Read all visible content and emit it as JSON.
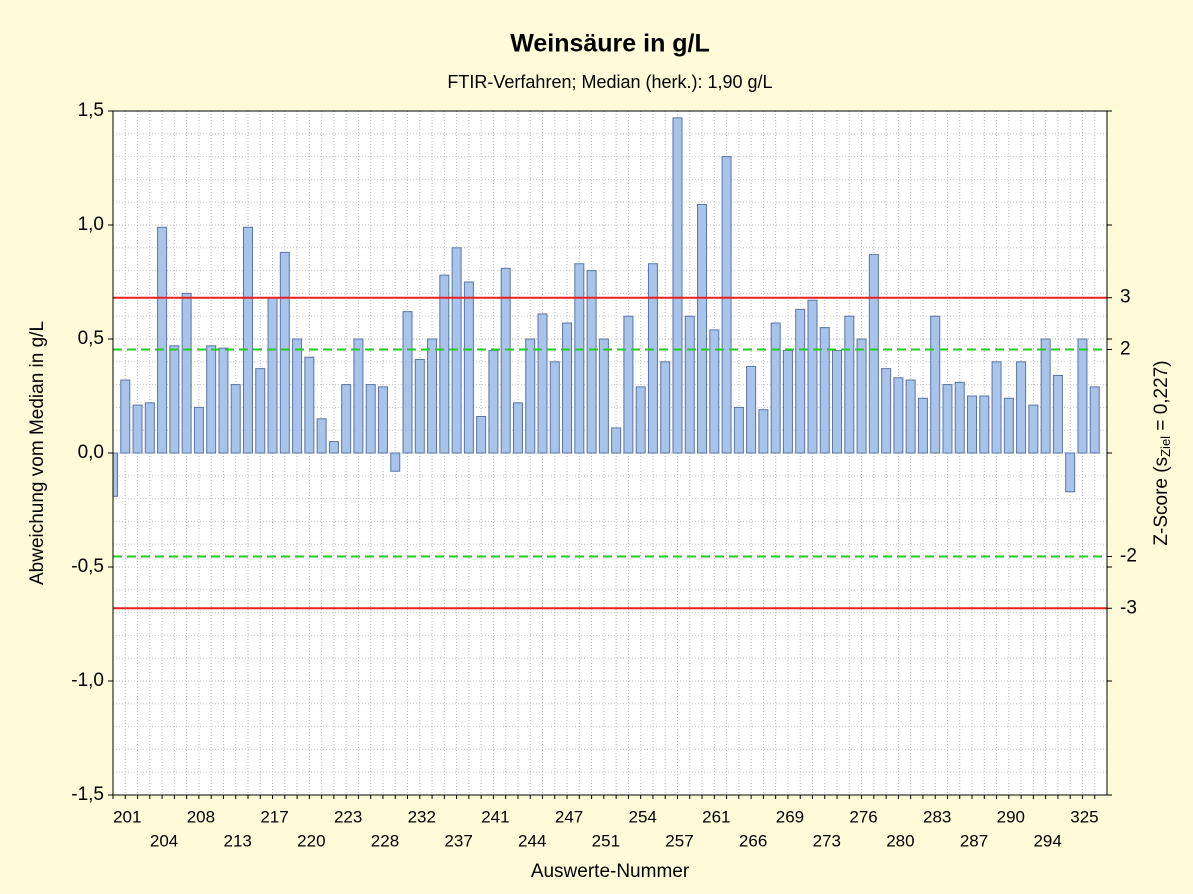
{
  "chart_data": {
    "type": "bar",
    "title": "Weinsäure in g/L",
    "subtitle": "FTIR-Verfahren; Median (herk.): 1,90 g/L",
    "ylabel": "Abweichung vom Median in g/L",
    "xlabel": "Auswerte-Nummer",
    "y2label": [
      "Z-Score (s",
      "Ziel",
      " = 0,227)"
    ],
    "categories": [
      null,
      "201",
      null,
      null,
      "204",
      null,
      null,
      "208",
      null,
      null,
      "213",
      null,
      null,
      "217",
      null,
      null,
      "220",
      null,
      null,
      "223",
      null,
      null,
      "228",
      null,
      null,
      "232",
      null,
      null,
      "237",
      null,
      null,
      "241",
      null,
      null,
      "244",
      null,
      null,
      "247",
      null,
      null,
      "251",
      null,
      null,
      "254",
      null,
      null,
      "257",
      null,
      null,
      "261",
      null,
      null,
      "266",
      null,
      null,
      "269",
      null,
      null,
      "273",
      null,
      null,
      "276",
      null,
      null,
      "280",
      null,
      null,
      "283",
      null,
      null,
      "287",
      null,
      null,
      "290",
      null,
      null,
      "294",
      null,
      null,
      "325",
      null
    ],
    "values": [
      -0.19,
      0.32,
      0.21,
      0.22,
      0.99,
      0.47,
      0.7,
      0.2,
      0.47,
      0.46,
      0.3,
      0.99,
      0.37,
      0.68,
      0.88,
      0.5,
      0.42,
      0.15,
      0.05,
      0.3,
      0.5,
      0.3,
      0.29,
      -0.08,
      0.62,
      0.41,
      0.5,
      0.78,
      0.9,
      0.75,
      0.16,
      0.45,
      0.81,
      0.22,
      0.5,
      0.61,
      0.4,
      0.57,
      0.83,
      0.8,
      0.5,
      0.11,
      0.6,
      0.29,
      0.83,
      0.4,
      1.47,
      0.6,
      1.09,
      0.54,
      1.3,
      0.2,
      0.38,
      0.19,
      0.57,
      0.45,
      0.63,
      0.67,
      0.55,
      0.45,
      0.6,
      0.5,
      0.87,
      0.37,
      0.33,
      0.32,
      0.24,
      0.6,
      0.3,
      0.31,
      0.25,
      0.25,
      0.4,
      0.24,
      0.4,
      0.21,
      0.5,
      0.34,
      -0.17,
      0.5,
      0.29
    ],
    "color": "#a9c4ea",
    "ylim": [
      -1.5,
      1.5
    ],
    "yticks": [
      {
        "value": -1.5,
        "label": "-1,5"
      },
      {
        "value": -1.0,
        "label": "-1,0"
      },
      {
        "value": -0.5,
        "label": "-0,5"
      },
      {
        "value": 0.0,
        "label": "0,0"
      },
      {
        "value": 0.5,
        "label": "0,5"
      },
      {
        "value": 1.0,
        "label": "1,0"
      },
      {
        "value": 1.5,
        "label": "1,5"
      }
    ],
    "y2lim": [
      -6.608,
      6.608
    ],
    "y2ticks": [
      -3,
      -2,
      2,
      3
    ],
    "y2tick_line_colors": [
      "#e82020",
      "#22cc22",
      "#22cc22",
      "#e82020"
    ],
    "y2tick_line_dashed": [
      false,
      true,
      true,
      false
    ],
    "grid": true
  }
}
